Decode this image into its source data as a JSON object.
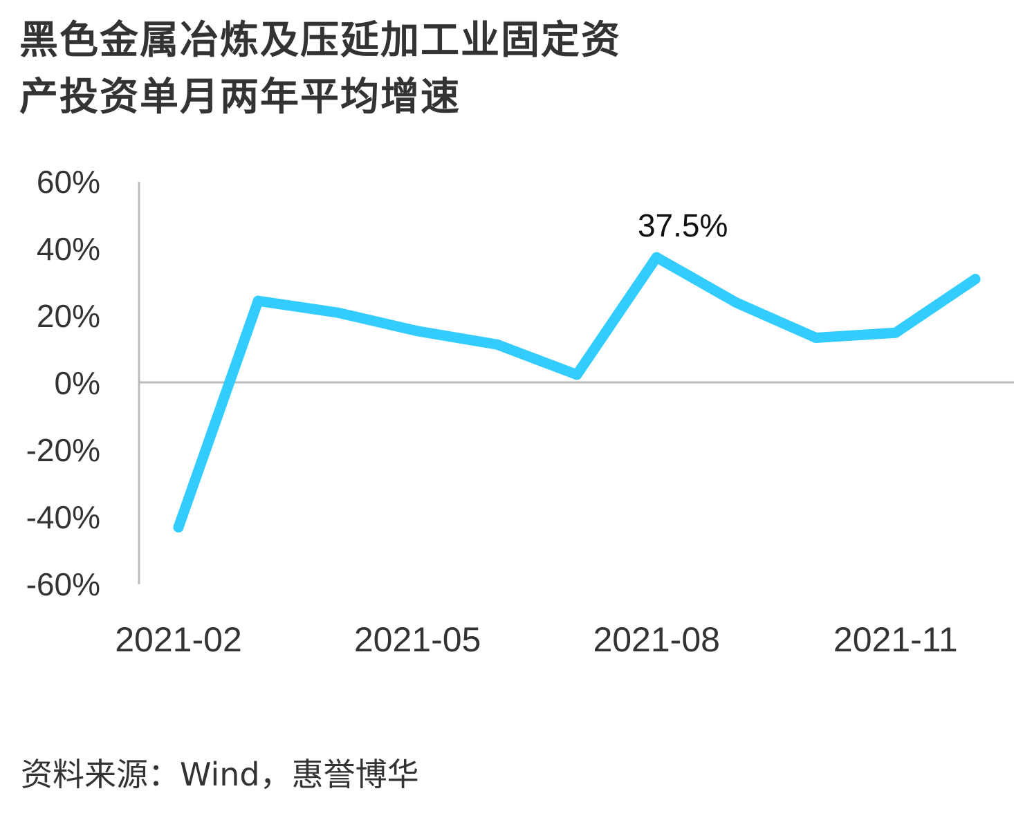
{
  "title": {
    "line1": "黑色金属冶炼及压延加工业固定资",
    "line2": "产投资单月两年平均增速"
  },
  "source": "资料来源：Wind，惠誉博华",
  "chart_data": {
    "type": "line",
    "title": "黑色金属冶炼及压延加工业固定资产投资单月两年平均增速",
    "x": [
      "2021-02",
      "2021-03",
      "2021-04",
      "2021-05",
      "2021-06",
      "2021-07",
      "2021-08",
      "2021-09",
      "2021-10",
      "2021-11",
      "2021-12"
    ],
    "x_tick_labels": [
      "2021-02",
      "2021-05",
      "2021-08",
      "2021-11"
    ],
    "series": [
      {
        "values": [
          -43.0,
          24.5,
          21.0,
          15.5,
          11.5,
          2.5,
          37.5,
          24.0,
          13.5,
          15.0,
          31.0
        ],
        "color": "#33CCFF"
      }
    ],
    "y_tick_labels": [
      "60%",
      "40%",
      "20%",
      "0%",
      "-20%",
      "-40%",
      "-60%"
    ],
    "y_ticks": [
      60,
      40,
      20,
      0,
      -20,
      -40,
      -60
    ],
    "ylim": [
      -60,
      60
    ],
    "annotation": {
      "x": "2021-08",
      "label": "37.5%"
    },
    "grid": false,
    "axis_color": "#BBBBBB"
  }
}
